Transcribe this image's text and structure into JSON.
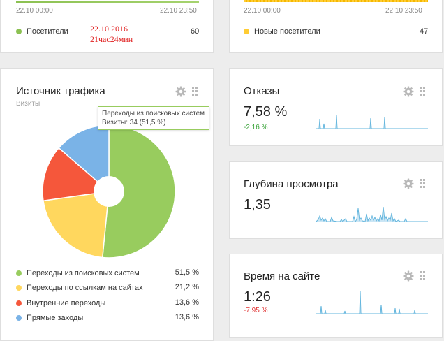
{
  "visitors_card": {
    "time_start": "22.10 00:00",
    "time_end": "22.10 23:50",
    "legend_label": "Посетители",
    "legend_color": "#8cc152",
    "value": "60",
    "annotation_date": "22.10.2016",
    "annotation_time": "21час24мин"
  },
  "new_visitors_card": {
    "time_start": "22.10 00:00",
    "time_end": "22.10 23:50",
    "legend_label": "Новые посетители",
    "legend_color": "#ffcc33",
    "value": "47"
  },
  "traffic_card": {
    "title": "Источник трафика",
    "subtitle": "Визиты",
    "tooltip_title": "Переходы из поисковых систем",
    "tooltip_value": "Визиты: 34 (51,5 %)",
    "chart_data": {
      "type": "pie",
      "donut": true,
      "slices": [
        {
          "label": "Переходы из поисковых систем",
          "value": 51.5,
          "percent_label": "51,5 %",
          "color": "#98cc5e"
        },
        {
          "label": "Переходы по ссылкам на сайтах",
          "value": 21.2,
          "percent_label": "21,2 %",
          "color": "#ffd75e"
        },
        {
          "label": "Внутренние переходы",
          "value": 13.6,
          "percent_label": "13,6 %",
          "color": "#f5573b"
        },
        {
          "label": "Прямые заходы",
          "value": 13.6,
          "percent_label": "13,6 %",
          "color": "#7ab3e7"
        }
      ]
    }
  },
  "bounce_card": {
    "title": "Отказы",
    "value": "7,58 %",
    "delta": "-2,16 %",
    "delta_color": "#3ba43b"
  },
  "depth_card": {
    "title": "Глубина просмотра",
    "value": "1,35"
  },
  "time_card": {
    "title": "Время на сайте",
    "value": "1:26",
    "delta": "-7,95 %",
    "delta_color": "#e03030"
  },
  "icons": {
    "settings": "gear-icon",
    "drag": "drag-handle-icon"
  }
}
